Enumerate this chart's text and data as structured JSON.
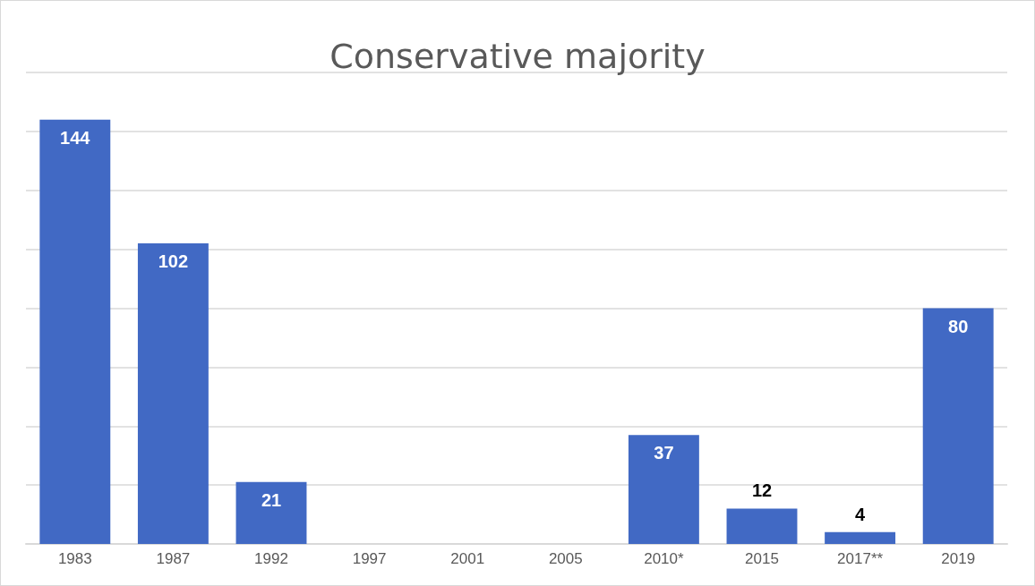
{
  "chart_data": {
    "type": "bar",
    "title": "Conservative majority",
    "categories": [
      "1983",
      "1987",
      "1992",
      "1997",
      "2001",
      "2005",
      "2010*",
      "2015",
      "2017**",
      "2019"
    ],
    "values": [
      144,
      102,
      21,
      null,
      null,
      null,
      37,
      12,
      4,
      80
    ],
    "color": "#4169c4",
    "ylim": [
      0,
      160
    ],
    "yticks": [
      {
        "value": 0,
        "label": null
      },
      {
        "value": 20,
        "label": null
      },
      {
        "value": 40,
        "label": null
      },
      {
        "value": 60,
        "label": null
      },
      {
        "value": 80,
        "label": null
      },
      {
        "value": 100,
        "label": null
      },
      {
        "value": 120,
        "label": null
      },
      {
        "value": 140,
        "label": null
      },
      {
        "value": 160,
        "label": null
      }
    ],
    "grid": "y",
    "tick_labels": "x",
    "data_labels": true
  }
}
